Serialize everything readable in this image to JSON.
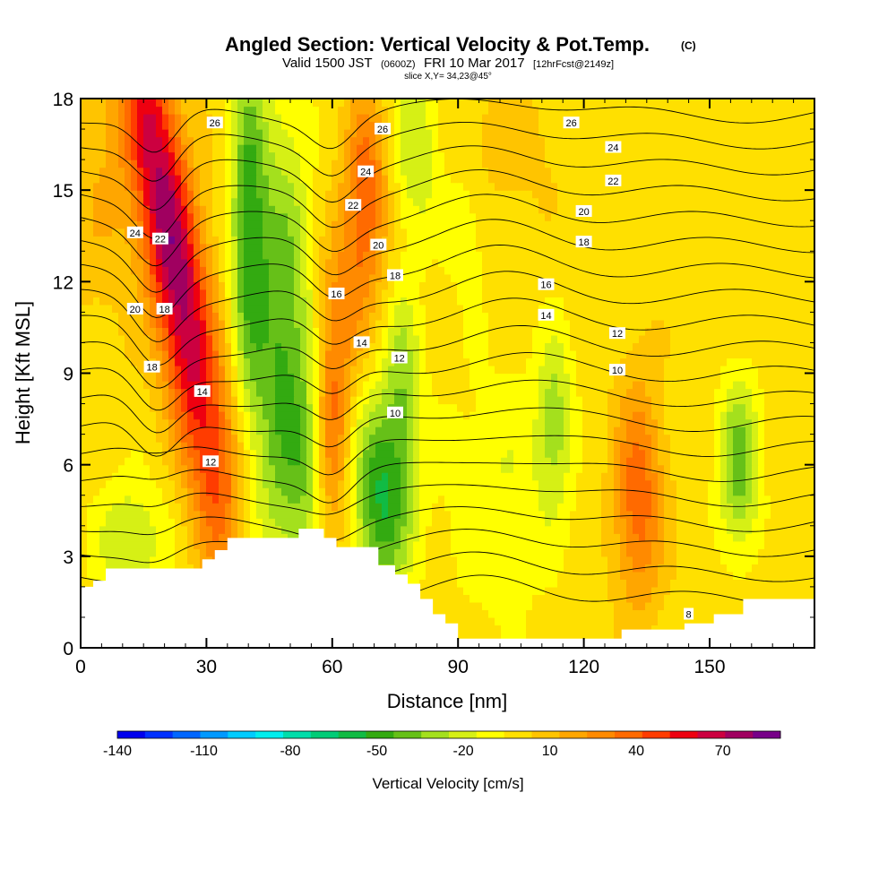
{
  "chart_data": {
    "type": "heatmap",
    "title": "Angled Section: Vertical Velocity & Pot.Temp.",
    "title_unit": "(C)",
    "subtitle": {
      "valid": "Valid 1500 JST",
      "utc": "(0600Z)",
      "date": "FRI 10 Mar 2017",
      "forecast": "[12hrFcst@2149z]"
    },
    "slice_label": "slice X,Y= 34,23@45°",
    "xlabel": "Distance [nm]",
    "ylabel": "Height [Kft MSL]",
    "xlim": [
      0,
      175
    ],
    "ylim": [
      0,
      18
    ],
    "x_ticks": [
      "0",
      "30",
      "60",
      "90",
      "120",
      "150"
    ],
    "x_tick_values": [
      0,
      30,
      60,
      90,
      120,
      150
    ],
    "y_ticks": [
      "0",
      "3",
      "6",
      "9",
      "12",
      "15",
      "18"
    ],
    "y_tick_values": [
      0,
      3,
      6,
      9,
      12,
      15,
      18
    ],
    "colorbar": {
      "label": "Vertical Velocity [cm/s]",
      "tick_labels": [
        "-140",
        "-110",
        "-80",
        "-50",
        "-20",
        "10",
        "40",
        "70"
      ],
      "tick_values": [
        -140,
        -110,
        -80,
        -50,
        -20,
        10,
        40,
        70
      ],
      "min": -140,
      "max": 90,
      "colors": [
        "#0000ee",
        "#0030ff",
        "#0066ff",
        "#0099ff",
        "#00ccff",
        "#00eeee",
        "#00ddaa",
        "#00cc77",
        "#11bb44",
        "#33aa11",
        "#66c018",
        "#a4e01d",
        "#d6f015",
        "#ffff00",
        "#ffe000",
        "#ffc400",
        "#ffa600",
        "#ff8a00",
        "#ff6a00",
        "#ff3c00",
        "#ee0010",
        "#cc0040",
        "#a00060",
        "#770088"
      ]
    },
    "velocity_field": {
      "background": 0,
      "features": [
        {
          "x": 22,
          "y": 13,
          "sx": 5,
          "sy": 6,
          "tilt": -1.2,
          "amp": 78
        },
        {
          "x": 68,
          "y": 15,
          "sx": 3.5,
          "sy": 2.2,
          "tilt": 0,
          "amp": 40
        },
        {
          "x": 64,
          "y": 11.5,
          "sx": 4,
          "sy": 2,
          "tilt": 0,
          "amp": 18
        },
        {
          "x": 60,
          "y": 7.5,
          "sx": 3,
          "sy": 3,
          "tilt": 0,
          "amp": 35
        },
        {
          "x": 133,
          "y": 5,
          "sx": 4,
          "sy": 2.5,
          "tilt": 0,
          "amp": 40
        },
        {
          "x": 100,
          "y": 16.5,
          "sx": 9,
          "sy": 1.5,
          "tilt": 0,
          "amp": 10
        },
        {
          "x": 5,
          "y": 15,
          "sx": 6,
          "sy": 3,
          "tilt": 0,
          "amp": 12
        },
        {
          "x": 33,
          "y": 5.5,
          "sx": 4,
          "sy": 2,
          "tilt": 0,
          "amp": 12
        },
        {
          "x": 40,
          "y": 14,
          "sx": 3,
          "sy": 4,
          "tilt": 0,
          "amp": -45
        },
        {
          "x": 48,
          "y": 9.5,
          "sx": 5,
          "sy": 5.5,
          "tilt": 0,
          "amp": -45
        },
        {
          "x": 54,
          "y": 6,
          "sx": 3,
          "sy": 2.5,
          "tilt": 0,
          "amp": -20
        },
        {
          "x": 72,
          "y": 5,
          "sx": 5,
          "sy": 2.3,
          "tilt": 0,
          "amp": -55
        },
        {
          "x": 77,
          "y": 9,
          "sx": 3,
          "sy": 2,
          "tilt": 0,
          "amp": -25
        },
        {
          "x": 80,
          "y": 16.5,
          "sx": 4,
          "sy": 2.2,
          "tilt": 0,
          "amp": -25
        },
        {
          "x": 92,
          "y": 14,
          "sx": 4,
          "sy": 2,
          "tilt": 0,
          "amp": -12
        },
        {
          "x": 113,
          "y": 7.5,
          "sx": 3,
          "sy": 2,
          "tilt": 0,
          "amp": -28
        },
        {
          "x": 157,
          "y": 6,
          "sx": 3.5,
          "sy": 2,
          "tilt": 0,
          "amp": -40
        },
        {
          "x": 12,
          "y": 3.5,
          "sx": 6,
          "sy": 1.5,
          "tilt": 0,
          "amp": -25
        },
        {
          "x": 100,
          "y": 5,
          "sx": 10,
          "sy": 3,
          "tilt": 0,
          "amp": -15
        }
      ]
    },
    "terrain": [
      [
        0,
        2.0
      ],
      [
        3,
        2.0
      ],
      [
        3,
        2.2
      ],
      [
        6,
        2.2
      ],
      [
        6,
        2.6
      ],
      [
        17,
        2.6
      ],
      [
        17,
        2.6
      ],
      [
        29,
        2.6
      ],
      [
        29,
        2.9
      ],
      [
        32,
        2.9
      ],
      [
        32,
        3.2
      ],
      [
        35,
        3.2
      ],
      [
        35,
        3.6
      ],
      [
        52,
        3.6
      ],
      [
        52,
        3.9
      ],
      [
        58,
        3.9
      ],
      [
        58,
        3.6
      ],
      [
        61,
        3.6
      ],
      [
        61,
        3.3
      ],
      [
        71,
        3.3
      ],
      [
        71,
        2.7
      ],
      [
        75,
        2.7
      ],
      [
        75,
        2.4
      ],
      [
        78,
        2.4
      ],
      [
        78,
        2.1
      ],
      [
        81,
        2.1
      ],
      [
        81,
        1.6
      ],
      [
        84,
        1.6
      ],
      [
        84,
        1.1
      ],
      [
        87,
        1.1
      ],
      [
        87,
        0.8
      ],
      [
        90,
        0.8
      ],
      [
        90,
        0.3
      ],
      [
        129,
        0.3
      ],
      [
        129,
        0.6
      ],
      [
        144,
        0.6
      ],
      [
        144,
        0.8
      ],
      [
        151,
        0.8
      ],
      [
        151,
        1.1
      ],
      [
        158,
        1.1
      ],
      [
        158,
        1.6
      ],
      [
        175,
        1.6
      ]
    ],
    "theta_contours": {
      "levels": [
        8,
        9,
        10,
        11,
        12,
        13,
        14,
        15,
        16,
        17,
        18,
        19,
        20,
        21,
        22,
        23,
        24,
        25,
        26,
        27
      ],
      "labeled_levels": [
        "8",
        "10",
        "12",
        "14",
        "16",
        "18",
        "20",
        "22",
        "24",
        "26"
      ],
      "labels": [
        {
          "text": "26",
          "x": 32,
          "y": 17.2
        },
        {
          "text": "26",
          "x": 72,
          "y": 17.0
        },
        {
          "text": "26",
          "x": 117,
          "y": 17.2
        },
        {
          "text": "24",
          "x": 13,
          "y": 13.6
        },
        {
          "text": "24",
          "x": 68,
          "y": 15.6
        },
        {
          "text": "24",
          "x": 127,
          "y": 16.4
        },
        {
          "text": "22",
          "x": 19,
          "y": 13.4
        },
        {
          "text": "22",
          "x": 65,
          "y": 14.5
        },
        {
          "text": "22",
          "x": 127,
          "y": 15.3
        },
        {
          "text": "20",
          "x": 13,
          "y": 11.1
        },
        {
          "text": "20",
          "x": 71,
          "y": 13.2
        },
        {
          "text": "20",
          "x": 120,
          "y": 14.3
        },
        {
          "text": "18",
          "x": 20,
          "y": 11.1
        },
        {
          "text": "18",
          "x": 17,
          "y": 9.2
        },
        {
          "text": "18",
          "x": 75,
          "y": 12.2
        },
        {
          "text": "18",
          "x": 120,
          "y": 13.3
        },
        {
          "text": "16",
          "x": 61,
          "y": 11.6
        },
        {
          "text": "16",
          "x": 111,
          "y": 11.9
        },
        {
          "text": "14",
          "x": 29,
          "y": 8.4
        },
        {
          "text": "14",
          "x": 67,
          "y": 10.0
        },
        {
          "text": "14",
          "x": 111,
          "y": 10.9
        },
        {
          "text": "12",
          "x": 31,
          "y": 6.1
        },
        {
          "text": "12",
          "x": 76,
          "y": 9.5
        },
        {
          "text": "12",
          "x": 128,
          "y": 10.3
        },
        {
          "text": "10",
          "x": 75,
          "y": 7.7
        },
        {
          "text": "10",
          "x": 128,
          "y": 9.1
        },
        {
          "text": "8",
          "x": 145,
          "y": 1.1
        }
      ]
    }
  }
}
